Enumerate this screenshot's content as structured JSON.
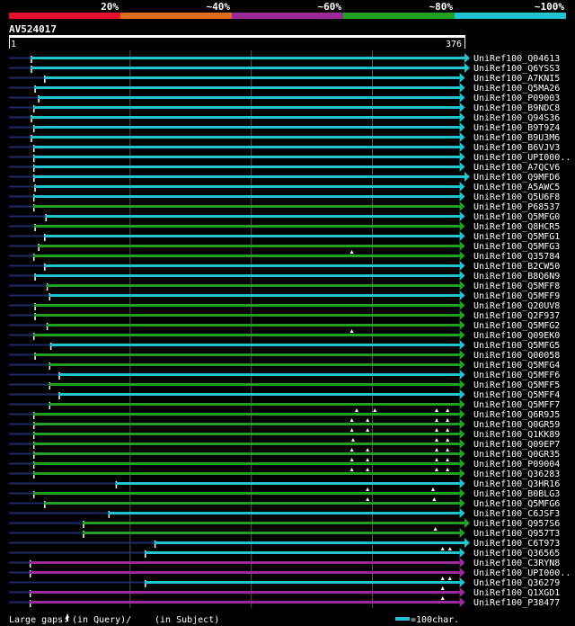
{
  "chart_data": {
    "type": "alignment-overview",
    "query": {
      "name": "AV524017",
      "start": "1",
      "end": "376",
      "length": 376
    },
    "identity_legend": [
      {
        "label": "20%",
        "color": "#e8112d"
      },
      {
        "label": "~40%",
        "color": "#e06c1e"
      },
      {
        "label": "~60%",
        "color": "#9a2a9a"
      },
      {
        "label": "~80%",
        "color": "#22a022"
      },
      {
        "label": "~100%",
        "color": "#1fc4d0"
      }
    ],
    "gap_legend": "Large gaps:",
    "gap_query_text": "(in Query)/",
    "gap_subject_text": "(in Subject)",
    "scale_text": "=100char.",
    "hits": [
      {
        "id": "UniRef100_Q04613",
        "start": 18,
        "end": 376,
        "color": "#1fc4d0",
        "tri": true,
        "gaps": []
      },
      {
        "id": "UniRef100_Q6YSS3",
        "start": 18,
        "end": 376,
        "color": "#1fc4d0",
        "tri": true,
        "gaps": []
      },
      {
        "id": "UniRef100_A7KNI5",
        "start": 29,
        "end": 372,
        "color": "#1fc4d0",
        "tri": true,
        "gaps": []
      },
      {
        "id": "UniRef100_Q5MA26",
        "start": 21,
        "end": 372,
        "color": "#1fc4d0",
        "tri": true,
        "gaps": []
      },
      {
        "id": "UniRef100_P09003",
        "start": 24,
        "end": 372,
        "color": "#1fc4d0",
        "tri": true,
        "gaps": []
      },
      {
        "id": "UniRef100_B9NDC8",
        "start": 20,
        "end": 372,
        "color": "#1fc4d0",
        "tri": true,
        "gaps": []
      },
      {
        "id": "UniRef100_Q94S36",
        "start": 18,
        "end": 372,
        "color": "#1fc4d0",
        "tri": true,
        "gaps": []
      },
      {
        "id": "UniRef100_B9T9Z4",
        "start": 20,
        "end": 372,
        "color": "#1fc4d0",
        "tri": true,
        "gaps": []
      },
      {
        "id": "UniRef100_B9U3M6",
        "start": 18,
        "end": 372,
        "color": "#1fc4d0",
        "tri": true,
        "gaps": []
      },
      {
        "id": "UniRef100_B6VJV3",
        "start": 20,
        "end": 372,
        "color": "#1fc4d0",
        "tri": true,
        "gaps": []
      },
      {
        "id": "UniRef100_UPI000..",
        "start": 20,
        "end": 372,
        "color": "#1fc4d0",
        "tri": true,
        "gaps": []
      },
      {
        "id": "UniRef100_A7QCV6",
        "start": 20,
        "end": 372,
        "color": "#1fc4d0",
        "tri": true,
        "gaps": []
      },
      {
        "id": "UniRef100_Q9MFD6",
        "start": 20,
        "end": 376,
        "color": "#1fc4d0",
        "tri": true,
        "gaps": []
      },
      {
        "id": "UniRef100_A5AWC5",
        "start": 21,
        "end": 372,
        "color": "#1fc4d0",
        "tri": true,
        "gaps": []
      },
      {
        "id": "UniRef100_Q5U6F8",
        "start": 20,
        "end": 372,
        "color": "#1fc4d0",
        "tri": true,
        "gaps": []
      },
      {
        "id": "UniRef100_P68537",
        "start": 20,
        "end": 372,
        "color": "#22a022",
        "tri": true,
        "gaps": []
      },
      {
        "id": "UniRef100_Q5MFG0",
        "start": 30,
        "end": 372,
        "color": "#1fc4d0",
        "tri": true,
        "gaps": []
      },
      {
        "id": "UniRef100_Q8HCR5",
        "start": 21,
        "end": 372,
        "color": "#22a022",
        "tri": true,
        "gaps": []
      },
      {
        "id": "UniRef100_Q5MFG1",
        "start": 29,
        "end": 372,
        "color": "#1fc4d0",
        "tri": true,
        "gaps": []
      },
      {
        "id": "UniRef100_Q5MFG3",
        "start": 24,
        "end": 372,
        "color": "#22a022",
        "tri": true,
        "gaps": []
      },
      {
        "id": "UniRef100_Q35784",
        "start": 20,
        "end": 372,
        "color": "#22a022",
        "tri": true,
        "gaps": [
          283
        ]
      },
      {
        "id": "UniRef100_B2CW50",
        "start": 29,
        "end": 372,
        "color": "#1fc4d0",
        "tri": true,
        "gaps": []
      },
      {
        "id": "UniRef100_B8Q6N9",
        "start": 21,
        "end": 372,
        "color": "#1fc4d0",
        "tri": true,
        "gaps": []
      },
      {
        "id": "UniRef100_Q5MFF8",
        "start": 31,
        "end": 372,
        "color": "#22a022",
        "tri": true,
        "gaps": []
      },
      {
        "id": "UniRef100_Q5MFF9",
        "start": 33,
        "end": 372,
        "color": "#1fc4d0",
        "tri": true,
        "gaps": []
      },
      {
        "id": "UniRef100_Q20UV8",
        "start": 21,
        "end": 372,
        "color": "#22a022",
        "tri": true,
        "gaps": []
      },
      {
        "id": "UniRef100_Q2F937",
        "start": 21,
        "end": 372,
        "color": "#22a022",
        "tri": true,
        "gaps": []
      },
      {
        "id": "UniRef100_Q5MFG2",
        "start": 31,
        "end": 372,
        "color": "#22a022",
        "tri": true,
        "gaps": []
      },
      {
        "id": "UniRef100_Q09EK0",
        "start": 20,
        "end": 372,
        "color": "#22a022",
        "tri": true,
        "gaps": [
          283
        ]
      },
      {
        "id": "UniRef100_Q5MFG5",
        "start": 34,
        "end": 372,
        "color": "#1fc4d0",
        "tri": true,
        "gaps": []
      },
      {
        "id": "UniRef100_Q00058",
        "start": 21,
        "end": 372,
        "color": "#22a022",
        "tri": true,
        "gaps": []
      },
      {
        "id": "UniRef100_Q5MFG4",
        "start": 33,
        "end": 372,
        "color": "#22a022",
        "tri": true,
        "gaps": []
      },
      {
        "id": "UniRef100_Q5MFF6",
        "start": 41,
        "end": 372,
        "color": "#1fc4d0",
        "tri": true,
        "gaps": []
      },
      {
        "id": "UniRef100_Q5MFF5",
        "start": 33,
        "end": 372,
        "color": "#22a022",
        "tri": true,
        "gaps": []
      },
      {
        "id": "UniRef100_Q5MFF4",
        "start": 41,
        "end": 372,
        "color": "#1fc4d0",
        "tri": true,
        "gaps": []
      },
      {
        "id": "UniRef100_Q5MFF7",
        "start": 33,
        "end": 372,
        "color": "#22a022",
        "tri": true,
        "gaps": []
      },
      {
        "id": "UniRef100_Q6R9J5",
        "start": 20,
        "end": 372,
        "color": "#22a022",
        "tri": true,
        "gaps": [
          287,
          302,
          353,
          362
        ]
      },
      {
        "id": "UniRef100_Q0GR59",
        "start": 20,
        "end": 372,
        "color": "#22a022",
        "tri": true,
        "gaps": [
          283,
          296,
          353,
          362
        ]
      },
      {
        "id": "UniRef100_Q1KK89",
        "start": 20,
        "end": 372,
        "color": "#22a022",
        "tri": true,
        "gaps": [
          283,
          296,
          353,
          362
        ]
      },
      {
        "id": "UniRef100_Q09EP7",
        "start": 20,
        "end": 372,
        "color": "#22a022",
        "tri": true,
        "gaps": [
          284,
          353,
          362
        ]
      },
      {
        "id": "UniRef100_Q0GR35",
        "start": 20,
        "end": 372,
        "color": "#22a022",
        "tri": true,
        "gaps": [
          283,
          296,
          353,
          362
        ]
      },
      {
        "id": "UniRef100_P09004",
        "start": 20,
        "end": 372,
        "color": "#22a022",
        "tri": true,
        "gaps": [
          283,
          296,
          353,
          362
        ]
      },
      {
        "id": "UniRef100_Q36283",
        "start": 20,
        "end": 372,
        "color": "#22a022",
        "tri": true,
        "gaps": [
          283,
          296,
          353,
          362
        ]
      },
      {
        "id": "UniRef100_Q3HR16",
        "start": 88,
        "end": 372,
        "color": "#1fc4d0",
        "tri": true,
        "gaps": []
      },
      {
        "id": "UniRef100_B0BLG3",
        "start": 20,
        "end": 372,
        "color": "#22a022",
        "tri": true,
        "gaps": [
          296,
          350
        ]
      },
      {
        "id": "UniRef100_Q5MFG6",
        "start": 29,
        "end": 372,
        "color": "#22a022",
        "tri": true,
        "gaps": [
          296,
          351
        ]
      },
      {
        "id": "UniRef100_C6JSF3",
        "start": 82,
        "end": 372,
        "color": "#1fc4d0",
        "tri": true,
        "gaps": []
      },
      {
        "id": "UniRef100_Q957S6",
        "start": 61,
        "end": 376,
        "color": "#22a022",
        "tri": true,
        "gaps": []
      },
      {
        "id": "UniRef100_Q957T3",
        "start": 61,
        "end": 372,
        "color": "#22a022",
        "tri": true,
        "gaps": [
          352
        ]
      },
      {
        "id": "UniRef100_C6T973",
        "start": 120,
        "end": 376,
        "color": "#1fc4d0",
        "tri": true,
        "gaps": []
      },
      {
        "id": "UniRef100_Q36565",
        "start": 112,
        "end": 372,
        "color": "#1fc4d0",
        "tri": true,
        "gaps": [
          358,
          364
        ]
      },
      {
        "id": "UniRef100_C3RYN8",
        "start": 17,
        "end": 372,
        "color": "#9a2a9a",
        "tri": true,
        "gaps": []
      },
      {
        "id": "UniRef100_UPI000..",
        "start": 17,
        "end": 372,
        "color": "#9a2a9a",
        "tri": true,
        "gaps": []
      },
      {
        "id": "UniRef100_Q36279",
        "start": 112,
        "end": 372,
        "color": "#1fc4d0",
        "tri": true,
        "gaps": [
          358,
          364
        ]
      },
      {
        "id": "UniRef100_Q1XGD1",
        "start": 17,
        "end": 372,
        "color": "#9a2a9a",
        "tri": true,
        "gaps": [
          358
        ]
      },
      {
        "id": "UniRef100_P38477",
        "start": 17,
        "end": 372,
        "color": "#9a2a9a",
        "tri": true,
        "gaps": [
          358
        ]
      }
    ]
  }
}
